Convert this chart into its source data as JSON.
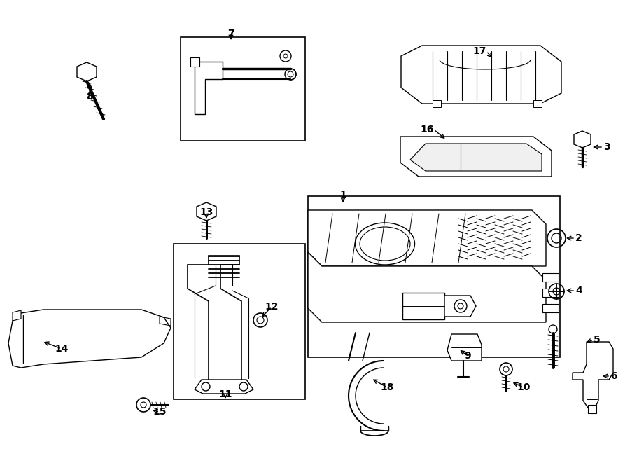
{
  "background_color": "#ffffff",
  "line_color": "#000000",
  "label_configs": [
    [
      "1",
      490,
      278,
      490,
      292,
      "center"
    ],
    [
      "2",
      822,
      340,
      806,
      340,
      "left"
    ],
    [
      "3",
      862,
      210,
      844,
      210,
      "left"
    ],
    [
      "4",
      822,
      415,
      806,
      415,
      "left"
    ],
    [
      "5",
      848,
      485,
      835,
      490,
      "left"
    ],
    [
      "6",
      872,
      537,
      858,
      537,
      "left"
    ],
    [
      "7",
      330,
      48,
      330,
      60,
      "center"
    ],
    [
      "8",
      128,
      138,
      128,
      115,
      "center"
    ],
    [
      "9",
      668,
      508,
      655,
      498,
      "center"
    ],
    [
      "10",
      748,
      553,
      730,
      545,
      "center"
    ],
    [
      "11",
      322,
      563,
      322,
      572,
      "center"
    ],
    [
      "12",
      388,
      438,
      372,
      455,
      "center"
    ],
    [
      "13",
      295,
      303,
      295,
      315,
      "center"
    ],
    [
      "14",
      88,
      498,
      60,
      487,
      "center"
    ],
    [
      "15",
      228,
      588,
      215,
      585,
      "center"
    ],
    [
      "16",
      620,
      185,
      638,
      200,
      "right"
    ],
    [
      "17",
      695,
      73,
      705,
      85,
      "right"
    ],
    [
      "18",
      553,
      553,
      530,
      540,
      "center"
    ]
  ]
}
